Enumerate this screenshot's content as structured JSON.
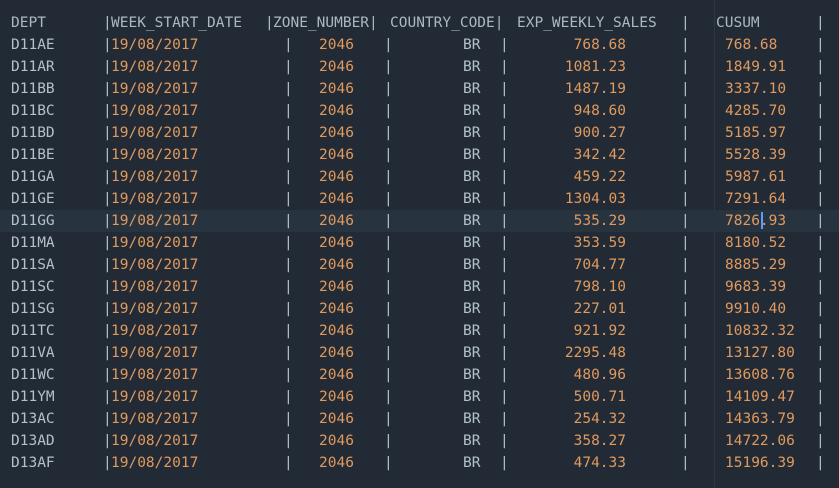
{
  "header": {
    "dept": "DEPT",
    "sep1": "|",
    "week_start_date": "WEEK_START_DATE",
    "sep2": "|",
    "zone_number": "ZONE_NUMBER|",
    "country_code": "COUNTRY_CODE|",
    "exp_weekly_sales": "EXP_WEEKLY_SALES",
    "sep3": "|",
    "cusum": "CUSUM",
    "sep4": "|"
  },
  "rows": [
    {
      "dept": "D11AE",
      "date": "19/08/2017",
      "zone": "2046",
      "country": "BR",
      "sales": "768.68",
      "cusum": "768.68"
    },
    {
      "dept": "D11AR",
      "date": "19/08/2017",
      "zone": "2046",
      "country": "BR",
      "sales": "1081.23",
      "cusum": "1849.91"
    },
    {
      "dept": "D11BB",
      "date": "19/08/2017",
      "zone": "2046",
      "country": "BR",
      "sales": "1487.19",
      "cusum": "3337.10"
    },
    {
      "dept": "D11BC",
      "date": "19/08/2017",
      "zone": "2046",
      "country": "BR",
      "sales": "948.60",
      "cusum": "4285.70"
    },
    {
      "dept": "D11BD",
      "date": "19/08/2017",
      "zone": "2046",
      "country": "BR",
      "sales": "900.27",
      "cusum": "5185.97"
    },
    {
      "dept": "D11BE",
      "date": "19/08/2017",
      "zone": "2046",
      "country": "BR",
      "sales": "342.42",
      "cusum": "5528.39"
    },
    {
      "dept": "D11GA",
      "date": "19/08/2017",
      "zone": "2046",
      "country": "BR",
      "sales": "459.22",
      "cusum": "5987.61"
    },
    {
      "dept": "D11GE",
      "date": "19/08/2017",
      "zone": "2046",
      "country": "BR",
      "sales": "1304.03",
      "cusum": "7291.64"
    },
    {
      "dept": "D11GG",
      "date": "19/08/2017",
      "zone": "2046",
      "country": "BR",
      "sales": "535.29",
      "cusum": "7826.93"
    },
    {
      "dept": "D11MA",
      "date": "19/08/2017",
      "zone": "2046",
      "country": "BR",
      "sales": "353.59",
      "cusum": "8180.52"
    },
    {
      "dept": "D11SA",
      "date": "19/08/2017",
      "zone": "2046",
      "country": "BR",
      "sales": "704.77",
      "cusum": "8885.29"
    },
    {
      "dept": "D11SC",
      "date": "19/08/2017",
      "zone": "2046",
      "country": "BR",
      "sales": "798.10",
      "cusum": "9683.39"
    },
    {
      "dept": "D11SG",
      "date": "19/08/2017",
      "zone": "2046",
      "country": "BR",
      "sales": "227.01",
      "cusum": "9910.40"
    },
    {
      "dept": "D11TC",
      "date": "19/08/2017",
      "zone": "2046",
      "country": "BR",
      "sales": "921.92",
      "cusum": "10832.32"
    },
    {
      "dept": "D11VA",
      "date": "19/08/2017",
      "zone": "2046",
      "country": "BR",
      "sales": "2295.48",
      "cusum": "13127.80"
    },
    {
      "dept": "D11WC",
      "date": "19/08/2017",
      "zone": "2046",
      "country": "BR",
      "sales": "480.96",
      "cusum": "13608.76"
    },
    {
      "dept": "D11YM",
      "date": "19/08/2017",
      "zone": "2046",
      "country": "BR",
      "sales": "500.71",
      "cusum": "14109.47"
    },
    {
      "dept": "D13AC",
      "date": "19/08/2017",
      "zone": "2046",
      "country": "BR",
      "sales": "254.32",
      "cusum": "14363.79"
    },
    {
      "dept": "D13AD",
      "date": "19/08/2017",
      "zone": "2046",
      "country": "BR",
      "sales": "358.27",
      "cusum": "14722.06"
    },
    {
      "dept": "D13AF",
      "date": "19/08/2017",
      "zone": "2046",
      "country": "BR",
      "sales": "474.33",
      "cusum": "15196.39"
    }
  ],
  "colors": {
    "background": "#222b35",
    "text": "#b0bec8",
    "number": "#e0995e",
    "cursor": "#5b9dff",
    "current_line": "#283340"
  },
  "editor": {
    "current_line_row": 8
  }
}
